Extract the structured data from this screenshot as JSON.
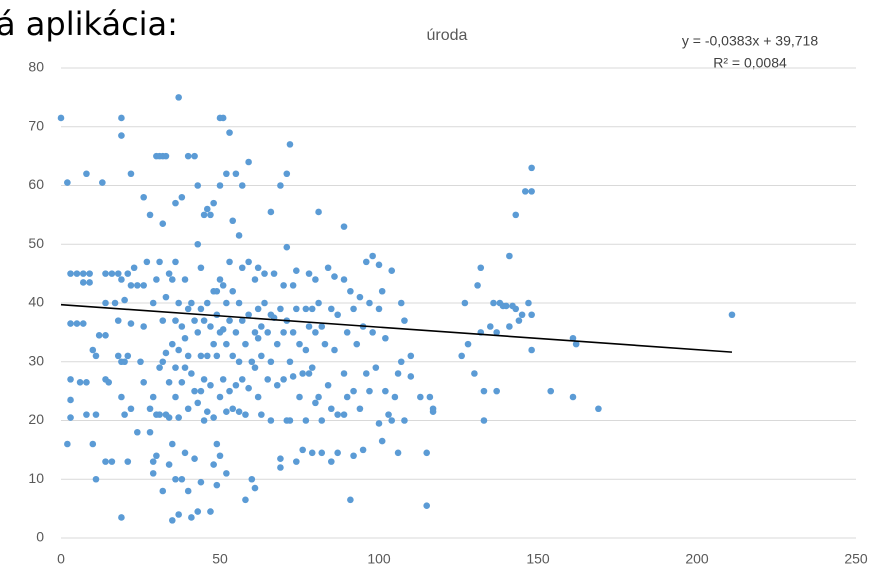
{
  "heading": "á aplikácia:",
  "chart_data": {
    "type": "scatter",
    "title": "úroda",
    "equation": "y = -0,0383x + 39,718",
    "r_squared": "R² = 0,0084",
    "color": "#5b9bd5",
    "grid": true,
    "xlim": [
      0,
      250
    ],
    "xticks": [
      0,
      50,
      100,
      150,
      200,
      250
    ],
    "ylim": [
      0,
      80
    ],
    "yticks": [
      0,
      10,
      20,
      30,
      40,
      50,
      60,
      70,
      80
    ],
    "trendline": {
      "slope": -0.0383,
      "intercept": 39.718,
      "x": [
        0,
        211
      ],
      "color": "#000000"
    },
    "x": [
      0,
      2,
      2,
      3,
      3,
      3,
      3,
      3,
      5,
      5,
      6,
      7,
      7,
      7,
      8,
      8,
      8,
      9,
      9,
      10,
      10,
      11,
      11,
      11,
      12,
      13,
      14,
      14,
      14,
      14,
      14,
      15,
      16,
      16,
      17,
      18,
      18,
      18,
      19,
      19,
      19,
      19,
      19,
      19,
      20,
      20,
      20,
      21,
      21,
      21,
      22,
      22,
      22,
      22,
      23,
      24,
      24,
      25,
      26,
      26,
      26,
      26,
      27,
      28,
      28,
      28,
      29,
      29,
      29,
      29,
      30,
      30,
      30,
      30,
      31,
      31,
      31,
      31,
      32,
      32,
      32,
      32,
      32,
      33,
      33,
      33,
      33,
      34,
      34,
      34,
      34,
      35,
      35,
      35,
      35,
      36,
      36,
      36,
      36,
      36,
      36,
      37,
      37,
      37,
      37,
      37,
      38,
      38,
      38,
      38,
      39,
      39,
      39,
      39,
      40,
      40,
      40,
      40,
      40,
      41,
      41,
      41,
      42,
      42,
      42,
      42,
      43,
      43,
      43,
      43,
      43,
      44,
      44,
      44,
      44,
      44,
      45,
      45,
      45,
      45,
      46,
      46,
      46,
      46,
      47,
      47,
      47,
      47,
      48,
      48,
      48,
      48,
      48,
      49,
      49,
      49,
      49,
      49,
      50,
      50,
      50,
      50,
      50,
      50,
      51,
      51,
      51,
      51,
      52,
      52,
      52,
      52,
      52,
      53,
      53,
      53,
      53,
      54,
      54,
      54,
      54,
      55,
      55,
      55,
      56,
      56,
      56,
      56,
      57,
      57,
      57,
      57,
      58,
      58,
      58,
      59,
      59,
      59,
      59,
      60,
      60,
      61,
      61,
      61,
      61,
      62,
      62,
      62,
      62,
      63,
      63,
      63,
      64,
      64,
      65,
      65,
      66,
      66,
      66,
      66,
      67,
      67,
      68,
      68,
      69,
      69,
      69,
      69,
      70,
      70,
      70,
      71,
      71,
      71,
      71,
      72,
      72,
      72,
      73,
      73,
      73,
      74,
      74,
      74,
      75,
      75,
      76,
      76,
      77,
      77,
      77,
      78,
      78,
      78,
      79,
      79,
      79,
      80,
      80,
      80,
      81,
      81,
      81,
      82,
      82,
      82,
      83,
      84,
      84,
      85,
      85,
      85,
      86,
      86,
      87,
      87,
      87,
      89,
      89,
      89,
      89,
      90,
      90,
      91,
      91,
      92,
      92,
      92,
      93,
      94,
      94,
      95,
      95,
      96,
      96,
      97,
      97,
      98,
      98,
      99,
      100,
      100,
      100,
      101,
      101,
      102,
      102,
      103,
      104,
      104,
      105,
      106,
      106,
      107,
      107,
      108,
      108,
      110,
      110,
      113,
      115,
      115,
      116,
      117,
      117,
      126,
      127,
      128,
      130,
      131,
      132,
      132,
      133,
      133,
      135,
      136,
      137,
      137,
      138,
      139,
      140,
      141,
      141,
      142,
      143,
      143,
      144,
      145,
      146,
      147,
      148,
      148,
      148,
      148,
      154,
      161,
      161,
      162,
      169,
      211
    ],
    "values": [
      71.5,
      60.5,
      16,
      45,
      36.5,
      27,
      23.5,
      20.5,
      45,
      36.5,
      26.5,
      45,
      43.5,
      36.5,
      62,
      26.5,
      21,
      45,
      43.5,
      32,
      16,
      31,
      21,
      10,
      34.5,
      60.5,
      45,
      40,
      34.5,
      27,
      13,
      26.5,
      45,
      13,
      40,
      45,
      37,
      31,
      3.5,
      44,
      30,
      24,
      71.5,
      68.5,
      40.5,
      30,
      21,
      45,
      31,
      13,
      62,
      43,
      36.5,
      22,
      46,
      43,
      18,
      30,
      58,
      43,
      36,
      26.5,
      47,
      55,
      22,
      18,
      40,
      24,
      13,
      11,
      65,
      44,
      21,
      14,
      65,
      47,
      29,
      21,
      53.5,
      65,
      37,
      30,
      8,
      65,
      41,
      31.5,
      21,
      45,
      26.5,
      20.5,
      12.5,
      44,
      33,
      16,
      3,
      57,
      47,
      37,
      29,
      24,
      10,
      75,
      40,
      32,
      20.5,
      4,
      58,
      36,
      26.5,
      10,
      44,
      34,
      29,
      14.5,
      65,
      39,
      31,
      22,
      8,
      40,
      28,
      3.5,
      65,
      37,
      25,
      13.5,
      50,
      60,
      35,
      23,
      4.5,
      46,
      39,
      31,
      25,
      9.5,
      55,
      37,
      27,
      20,
      56,
      40,
      31,
      21.5,
      55,
      36,
      26,
      4.5,
      57,
      42,
      33,
      20.5,
      12.5,
      42,
      38,
      31,
      16,
      9,
      71.5,
      60,
      44,
      35,
      24,
      14,
      71.5,
      43,
      35.5,
      27,
      62,
      40,
      33,
      21.5,
      11,
      69,
      47,
      37,
      25,
      54,
      42,
      31,
      22,
      62,
      35,
      26,
      51.5,
      40,
      30,
      21.5,
      60,
      46,
      37,
      27,
      33,
      21,
      6.5,
      64,
      47,
      38,
      25.5,
      30,
      10,
      44,
      35,
      29,
      8.5,
      46,
      39,
      34,
      24,
      36,
      31,
      21,
      45,
      40,
      35,
      27,
      55.5,
      38,
      30,
      20,
      45,
      37.5,
      33,
      26,
      60,
      39,
      13.5,
      12,
      43,
      35,
      27,
      62,
      49.5,
      37,
      20,
      67,
      30,
      20,
      43,
      35,
      27.5,
      45.5,
      39,
      13,
      33,
      24,
      28,
      15,
      39,
      32,
      20,
      45,
      36,
      28,
      39,
      29,
      14.5,
      44,
      35,
      23,
      55.5,
      40,
      24,
      36,
      20,
      14.5,
      33,
      46,
      26,
      39,
      22,
      13,
      44.5,
      32,
      38,
      21,
      14.5,
      53,
      44,
      28,
      21,
      35,
      24,
      6.5,
      42,
      39,
      25,
      14,
      33,
      41,
      22,
      36,
      15,
      47,
      28,
      40,
      25,
      48,
      35,
      29,
      46.5,
      39,
      19.5,
      42,
      16.5,
      34,
      25,
      21,
      45.5,
      20,
      24,
      28,
      14.5,
      40,
      30,
      37,
      20,
      31,
      27.5,
      24,
      14.5,
      5.5,
      24,
      22,
      21.5,
      31,
      40,
      33,
      28,
      43,
      46,
      35,
      20,
      25,
      36,
      40,
      35,
      25,
      40,
      39.5,
      39.5,
      48,
      36,
      39.5,
      55,
      39,
      37,
      38,
      59,
      40,
      63,
      59,
      38,
      32,
      25,
      34,
      24,
      33,
      22,
      38
    ]
  }
}
